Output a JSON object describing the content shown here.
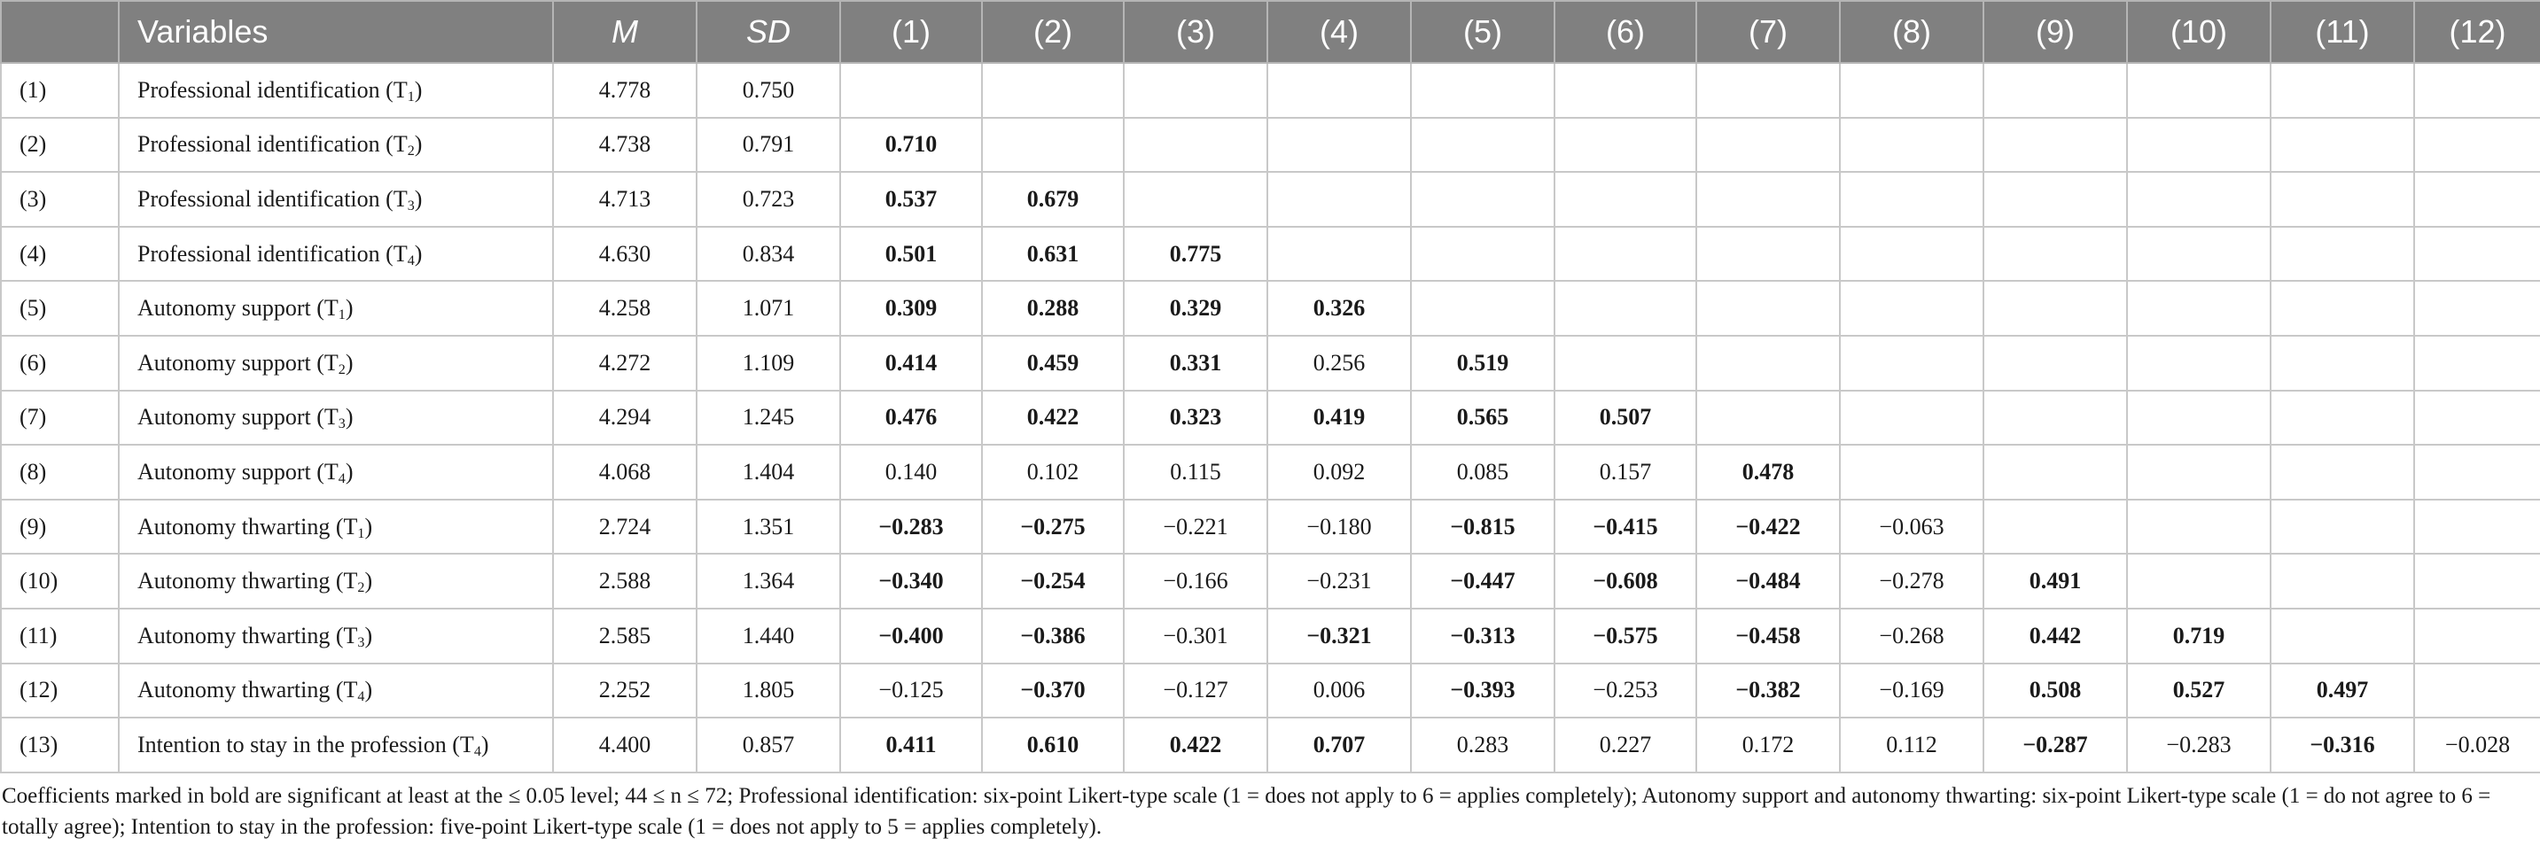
{
  "table": {
    "headers": {
      "index": "",
      "variables": "Variables",
      "mean": "M",
      "sd": "SD",
      "cols": [
        "(1)",
        "(2)",
        "(3)",
        "(4)",
        "(5)",
        "(6)",
        "(7)",
        "(8)",
        "(9)",
        "(10)",
        "(11)",
        "(12)"
      ]
    },
    "rows": [
      {
        "idx": "(1)",
        "name": "Professional identification (T",
        "sub": "1",
        "close": ")",
        "m": "4.778",
        "sd": "0.750",
        "cells": []
      },
      {
        "idx": "(2)",
        "name": "Professional identification (T",
        "sub": "2",
        "close": ")",
        "m": "4.738",
        "sd": "0.791",
        "cells": [
          {
            "v": "0.710",
            "b": true
          }
        ]
      },
      {
        "idx": "(3)",
        "name": "Professional identification (T",
        "sub": "3",
        "close": ")",
        "m": "4.713",
        "sd": "0.723",
        "cells": [
          {
            "v": "0.537",
            "b": true
          },
          {
            "v": "0.679",
            "b": true
          }
        ]
      },
      {
        "idx": "(4)",
        "name": "Professional identification (T",
        "sub": "4",
        "close": ")",
        "m": "4.630",
        "sd": "0.834",
        "cells": [
          {
            "v": "0.501",
            "b": true
          },
          {
            "v": "0.631",
            "b": true
          },
          {
            "v": "0.775",
            "b": true
          }
        ]
      },
      {
        "idx": "(5)",
        "name": "Autonomy support (T",
        "sub": "1",
        "close": ")",
        "m": "4.258",
        "sd": "1.071",
        "cells": [
          {
            "v": "0.309",
            "b": true
          },
          {
            "v": "0.288",
            "b": true
          },
          {
            "v": "0.329",
            "b": true
          },
          {
            "v": "0.326",
            "b": true
          }
        ]
      },
      {
        "idx": "(6)",
        "name": "Autonomy support (T",
        "sub": "2",
        "close": ")",
        "m": "4.272",
        "sd": "1.109",
        "cells": [
          {
            "v": "0.414",
            "b": true
          },
          {
            "v": "0.459",
            "b": true
          },
          {
            "v": "0.331",
            "b": true
          },
          {
            "v": "0.256",
            "b": false
          },
          {
            "v": "0.519",
            "b": true
          }
        ]
      },
      {
        "idx": "(7)",
        "name": "Autonomy support (T",
        "sub": "3",
        "close": ")",
        "m": "4.294",
        "sd": "1.245",
        "cells": [
          {
            "v": "0.476",
            "b": true
          },
          {
            "v": "0.422",
            "b": true
          },
          {
            "v": "0.323",
            "b": true
          },
          {
            "v": "0.419",
            "b": true
          },
          {
            "v": "0.565",
            "b": true
          },
          {
            "v": "0.507",
            "b": true
          }
        ]
      },
      {
        "idx": "(8)",
        "name": "Autonomy support (T",
        "sub": "4",
        "close": ")",
        "m": "4.068",
        "sd": "1.404",
        "cells": [
          {
            "v": "0.140",
            "b": false
          },
          {
            "v": "0.102",
            "b": false
          },
          {
            "v": "0.115",
            "b": false
          },
          {
            "v": "0.092",
            "b": false
          },
          {
            "v": "0.085",
            "b": false
          },
          {
            "v": "0.157",
            "b": false
          },
          {
            "v": "0.478",
            "b": true
          }
        ]
      },
      {
        "idx": "(9)",
        "name": "Autonomy thwarting (T",
        "sub": "1",
        "close": ")",
        "m": "2.724",
        "sd": "1.351",
        "cells": [
          {
            "v": "−0.283",
            "b": true
          },
          {
            "v": "−0.275",
            "b": true
          },
          {
            "v": "−0.221",
            "b": false
          },
          {
            "v": "−0.180",
            "b": false
          },
          {
            "v": "−0.815",
            "b": true
          },
          {
            "v": "−0.415",
            "b": true
          },
          {
            "v": "−0.422",
            "b": true
          },
          {
            "v": "−0.063",
            "b": false
          }
        ]
      },
      {
        "idx": "(10)",
        "name": "Autonomy thwarting (T",
        "sub": "2",
        "close": ")",
        "m": "2.588",
        "sd": "1.364",
        "cells": [
          {
            "v": "−0.340",
            "b": true
          },
          {
            "v": "−0.254",
            "b": true
          },
          {
            "v": "−0.166",
            "b": false
          },
          {
            "v": "−0.231",
            "b": false
          },
          {
            "v": "−0.447",
            "b": true
          },
          {
            "v": "−0.608",
            "b": true
          },
          {
            "v": "−0.484",
            "b": true
          },
          {
            "v": "−0.278",
            "b": false
          },
          {
            "v": "0.491",
            "b": true
          }
        ]
      },
      {
        "idx": "(11)",
        "name": "Autonomy thwarting (T",
        "sub": "3",
        "close": ")",
        "m": "2.585",
        "sd": "1.440",
        "cells": [
          {
            "v": "−0.400",
            "b": true
          },
          {
            "v": "−0.386",
            "b": true
          },
          {
            "v": "−0.301",
            "b": false
          },
          {
            "v": "−0.321",
            "b": true
          },
          {
            "v": "−0.313",
            "b": true
          },
          {
            "v": "−0.575",
            "b": true
          },
          {
            "v": "−0.458",
            "b": true
          },
          {
            "v": "−0.268",
            "b": false
          },
          {
            "v": "0.442",
            "b": true
          },
          {
            "v": "0.719",
            "b": true
          }
        ]
      },
      {
        "idx": "(12)",
        "name": "Autonomy thwarting (T",
        "sub": "4",
        "close": ")",
        "m": "2.252",
        "sd": "1.805",
        "cells": [
          {
            "v": "−0.125",
            "b": false
          },
          {
            "v": "−0.370",
            "b": true
          },
          {
            "v": "−0.127",
            "b": false
          },
          {
            "v": "0.006",
            "b": false
          },
          {
            "v": "−0.393",
            "b": true
          },
          {
            "v": "−0.253",
            "b": false
          },
          {
            "v": "−0.382",
            "b": true
          },
          {
            "v": "−0.169",
            "b": false
          },
          {
            "v": "0.508",
            "b": true
          },
          {
            "v": "0.527",
            "b": true
          },
          {
            "v": "0.497",
            "b": true
          }
        ]
      },
      {
        "idx": "(13)",
        "name": "Intention to stay in the profession (T",
        "sub": "4",
        "close": ")",
        "m": "4.400",
        "sd": "0.857",
        "cells": [
          {
            "v": "0.411",
            "b": true
          },
          {
            "v": "0.610",
            "b": true
          },
          {
            "v": "0.422",
            "b": true
          },
          {
            "v": "0.707",
            "b": true
          },
          {
            "v": "0.283",
            "b": false
          },
          {
            "v": "0.227",
            "b": false
          },
          {
            "v": "0.172",
            "b": false
          },
          {
            "v": "0.112",
            "b": false
          },
          {
            "v": "−0.287",
            "b": true
          },
          {
            "v": "−0.283",
            "b": false
          },
          {
            "v": "−0.316",
            "b": true
          },
          {
            "v": "−0.028",
            "b": false
          }
        ]
      }
    ]
  },
  "footnote": "Coefficients marked in bold are significant at least at the ≤ 0.05 level; 44 ≤ n ≤ 72; Professional identification: six-point Likert-type scale (1 = does not apply to 6 = applies completely); Autonomy support and autonomy thwarting: six-point Likert-type scale (1 = do not agree to 6 = totally agree); Intention to stay in the profession: five-point Likert-type scale (1 = does not apply to 5 = applies completely)."
}
